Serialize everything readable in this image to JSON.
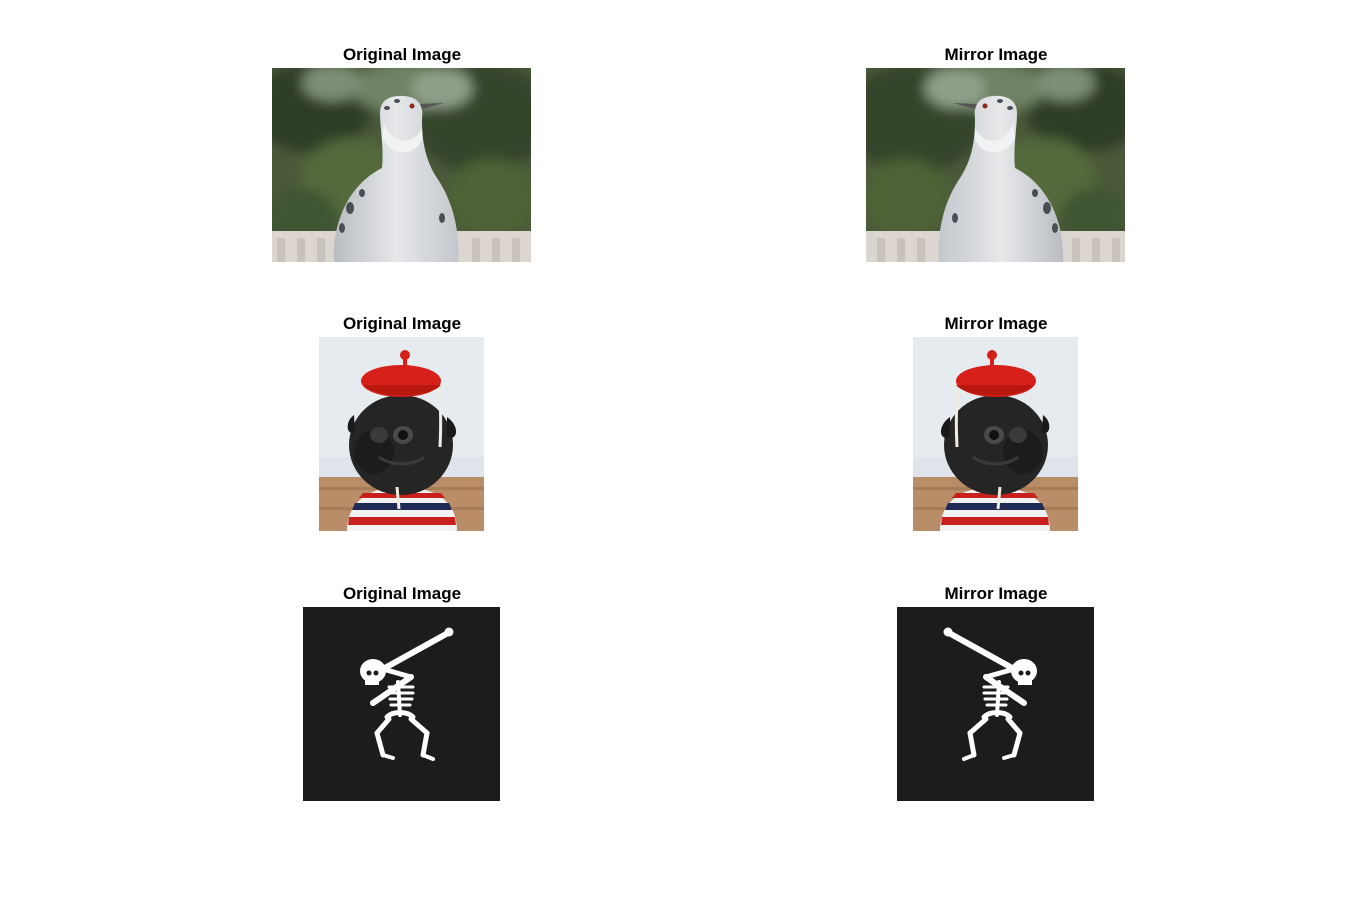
{
  "figure": {
    "rows": [
      {
        "original": {
          "title": "Original Image",
          "subject": "pigeon-photo"
        },
        "mirror": {
          "title": "Mirror Image",
          "subject": "pigeon-photo-mirrored"
        }
      },
      {
        "original": {
          "title": "Original Image",
          "subject": "pug-with-red-beret-photo"
        },
        "mirror": {
          "title": "Mirror Image",
          "subject": "pug-with-red-beret-photo-mirrored"
        }
      },
      {
        "original": {
          "title": "Original Image",
          "subject": "dabbing-skeleton-illustration"
        },
        "mirror": {
          "title": "Mirror Image",
          "subject": "dabbing-skeleton-illustration-mirrored"
        }
      }
    ]
  },
  "colors": {
    "background": "#ffffff",
    "skeleton_background": "#1c1c1c",
    "beret_red": "#d8201a"
  }
}
